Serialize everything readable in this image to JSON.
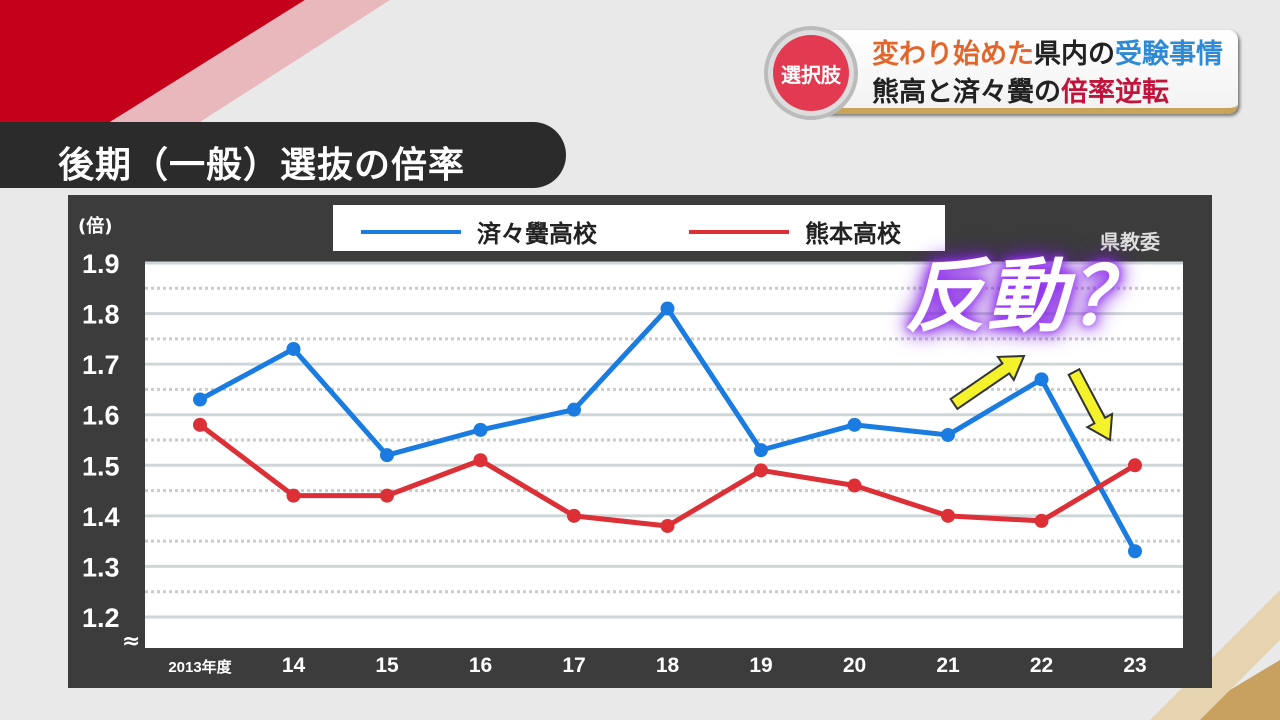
{
  "headline": {
    "badge": "選択肢",
    "line1": [
      {
        "t": "変わり始めた",
        "c": "#e2662b"
      },
      {
        "t": "県内の",
        "c": "#222222"
      },
      {
        "t": "受験事情",
        "c": "#2f8ad6"
      }
    ],
    "line2": [
      {
        "t": "熊高と済々黌の",
        "c": "#222222"
      },
      {
        "t": "倍率逆転",
        "c": "#c0143c"
      }
    ]
  },
  "title": "後期（一般）選抜の倍率",
  "source": "県教委",
  "annotation": "反動？",
  "chart_data": {
    "type": "line",
    "title": "後期（一般）選抜の倍率",
    "ylabel": "(倍)",
    "ylim": [
      1.2,
      1.9
    ],
    "yticks": [
      "1.9",
      "1.8",
      "1.7",
      "1.6",
      "1.5",
      "1.4",
      "1.3",
      "1.2"
    ],
    "axis_break": "≈",
    "categories": [
      "2013年度",
      "14",
      "15",
      "16",
      "17",
      "18",
      "19",
      "20",
      "21",
      "22",
      "23"
    ],
    "legend_position": "top",
    "series": [
      {
        "name": "済々黌高校",
        "color": "#1a7be0",
        "values": [
          1.63,
          1.73,
          1.52,
          1.57,
          1.61,
          1.81,
          1.53,
          1.58,
          1.56,
          1.67,
          1.33
        ]
      },
      {
        "name": "熊本高校",
        "color": "#dc2f36",
        "values": [
          1.58,
          1.44,
          1.44,
          1.51,
          1.4,
          1.38,
          1.49,
          1.46,
          1.4,
          1.39,
          1.5
        ]
      }
    ]
  }
}
